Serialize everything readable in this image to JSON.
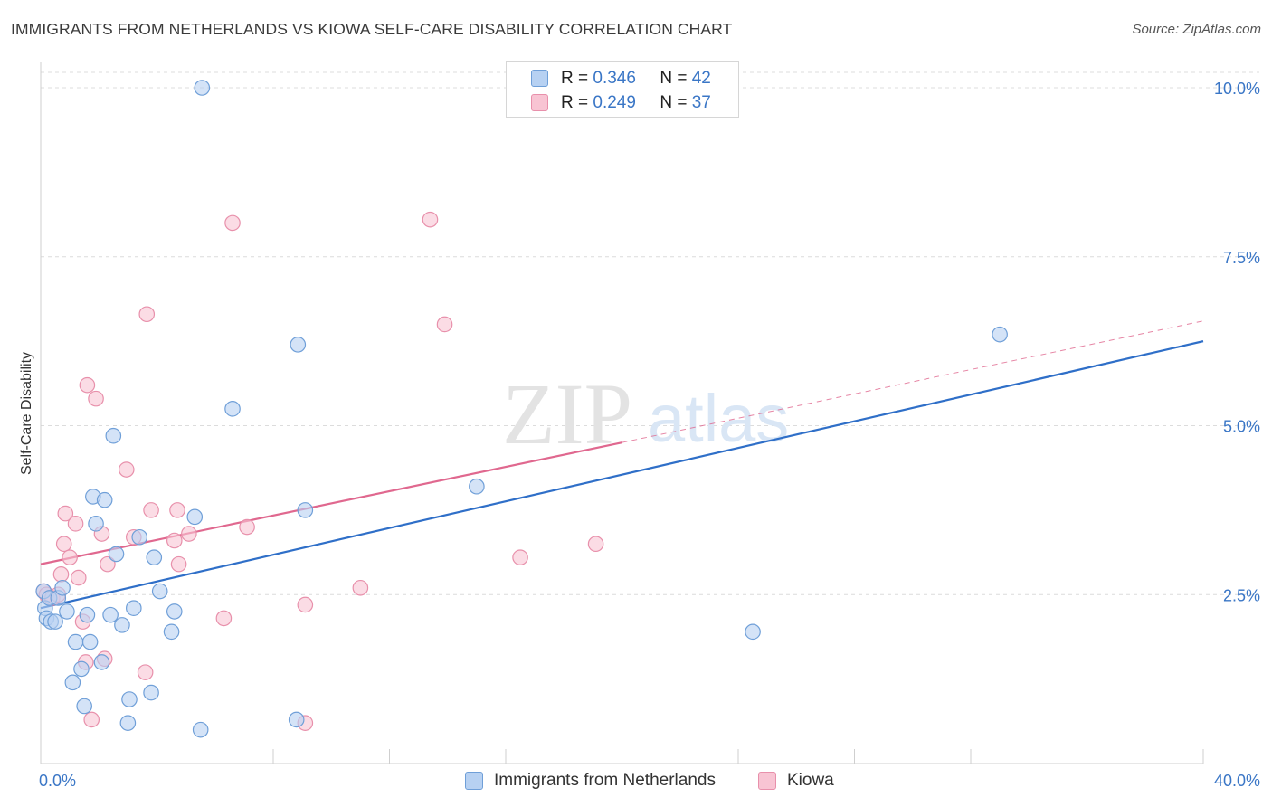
{
  "title": "IMMIGRANTS FROM NETHERLANDS VS KIOWA SELF-CARE DISABILITY CORRELATION CHART",
  "source": "Source: ZipAtlas.com",
  "watermark": {
    "zip": "ZIP",
    "atlas": "atlas"
  },
  "legend_top": [
    {
      "r_label": "R = ",
      "r_value": "0.346",
      "n_label": "N = ",
      "n_value": "42"
    },
    {
      "r_label": "R = ",
      "r_value": "0.249",
      "n_label": "N = ",
      "n_value": "37"
    }
  ],
  "colors": {
    "blue_fill": "#b7d1f2",
    "blue_stroke": "#6f9fd8",
    "blue_line": "#2f6fc8",
    "pink_fill": "#f8c4d3",
    "pink_stroke": "#e890ab",
    "pink_line": "#e0688f",
    "tick_label": "#3a76c6",
    "grid": "#dcdcdc"
  },
  "chart_data": {
    "type": "scatter",
    "title": "IMMIGRANTS FROM NETHERLANDS VS KIOWA SELF-CARE DISABILITY CORRELATION CHART",
    "xlabel": "",
    "ylabel": "Self-Care Disability",
    "xlim": [
      0,
      40
    ],
    "ylim": [
      0,
      10.5
    ],
    "x_tick_labels": [
      "0.0%",
      "40.0%"
    ],
    "y_ticks": [
      2.5,
      5.0,
      7.5,
      10.0
    ],
    "y_tick_labels": [
      "2.5%",
      "5.0%",
      "7.5%",
      "10.0%"
    ],
    "grid": "horizontal dashed",
    "legend_position": "top-center and bottom",
    "series": [
      {
        "name": "Immigrants from Netherlands",
        "r": 0.346,
        "n": 42,
        "points": [
          [
            0.1,
            2.55
          ],
          [
            0.15,
            2.3
          ],
          [
            0.2,
            2.15
          ],
          [
            0.3,
            2.45
          ],
          [
            0.35,
            2.1
          ],
          [
            0.5,
            2.1
          ],
          [
            0.6,
            2.45
          ],
          [
            0.75,
            2.6
          ],
          [
            0.9,
            2.25
          ],
          [
            1.1,
            1.2
          ],
          [
            1.2,
            1.8
          ],
          [
            1.4,
            1.4
          ],
          [
            1.5,
            0.85
          ],
          [
            1.6,
            2.2
          ],
          [
            1.7,
            1.8
          ],
          [
            1.8,
            3.95
          ],
          [
            1.9,
            3.55
          ],
          [
            2.1,
            1.5
          ],
          [
            2.2,
            3.9
          ],
          [
            2.4,
            2.2
          ],
          [
            2.6,
            3.1
          ],
          [
            2.8,
            2.05
          ],
          [
            3.0,
            0.6
          ],
          [
            3.05,
            0.95
          ],
          [
            3.2,
            2.3
          ],
          [
            3.4,
            3.35
          ],
          [
            3.8,
            1.05
          ],
          [
            3.9,
            3.05
          ],
          [
            4.1,
            2.55
          ],
          [
            4.5,
            1.95
          ],
          [
            4.6,
            2.25
          ],
          [
            5.3,
            3.65
          ],
          [
            5.5,
            0.5
          ],
          [
            5.55,
            10.0
          ],
          [
            6.6,
            5.25
          ],
          [
            2.5,
            4.85
          ],
          [
            8.8,
            0.65
          ],
          [
            8.85,
            6.2
          ],
          [
            9.1,
            3.75
          ],
          [
            15.0,
            4.1
          ],
          [
            24.5,
            1.95
          ],
          [
            33.0,
            6.35
          ]
        ],
        "trend": {
          "x": [
            0,
            40
          ],
          "y": [
            2.3,
            6.25
          ]
        }
      },
      {
        "name": "Kiowa",
        "r": 0.249,
        "n": 37,
        "points": [
          [
            0.1,
            2.55
          ],
          [
            0.2,
            2.5
          ],
          [
            0.4,
            2.45
          ],
          [
            0.6,
            2.5
          ],
          [
            0.7,
            2.8
          ],
          [
            0.8,
            3.25
          ],
          [
            0.85,
            3.7
          ],
          [
            1.0,
            3.05
          ],
          [
            1.2,
            3.55
          ],
          [
            1.3,
            2.75
          ],
          [
            1.45,
            2.1
          ],
          [
            1.55,
            1.5
          ],
          [
            1.6,
            5.6
          ],
          [
            1.75,
            0.65
          ],
          [
            1.9,
            5.4
          ],
          [
            2.1,
            3.4
          ],
          [
            2.2,
            1.55
          ],
          [
            2.3,
            2.95
          ],
          [
            2.95,
            4.35
          ],
          [
            3.2,
            3.35
          ],
          [
            3.6,
            1.35
          ],
          [
            3.65,
            6.65
          ],
          [
            3.8,
            3.75
          ],
          [
            4.6,
            3.3
          ],
          [
            4.7,
            3.75
          ],
          [
            4.75,
            2.95
          ],
          [
            5.1,
            3.4
          ],
          [
            6.3,
            2.15
          ],
          [
            6.6,
            8.0
          ],
          [
            7.1,
            3.5
          ],
          [
            9.1,
            0.6
          ],
          [
            9.1,
            2.35
          ],
          [
            11.0,
            2.6
          ],
          [
            13.4,
            8.05
          ],
          [
            13.9,
            6.5
          ],
          [
            16.5,
            3.05
          ],
          [
            19.1,
            3.25
          ]
        ],
        "trend_solid": {
          "x": [
            0,
            20
          ],
          "y": [
            2.95,
            4.75
          ]
        },
        "trend_dashed": {
          "x": [
            20,
            40
          ],
          "y": [
            4.75,
            6.55
          ]
        }
      }
    ]
  },
  "bottom_legend": [
    {
      "label": "Immigrants from Netherlands"
    },
    {
      "label": "Kiowa"
    }
  ]
}
